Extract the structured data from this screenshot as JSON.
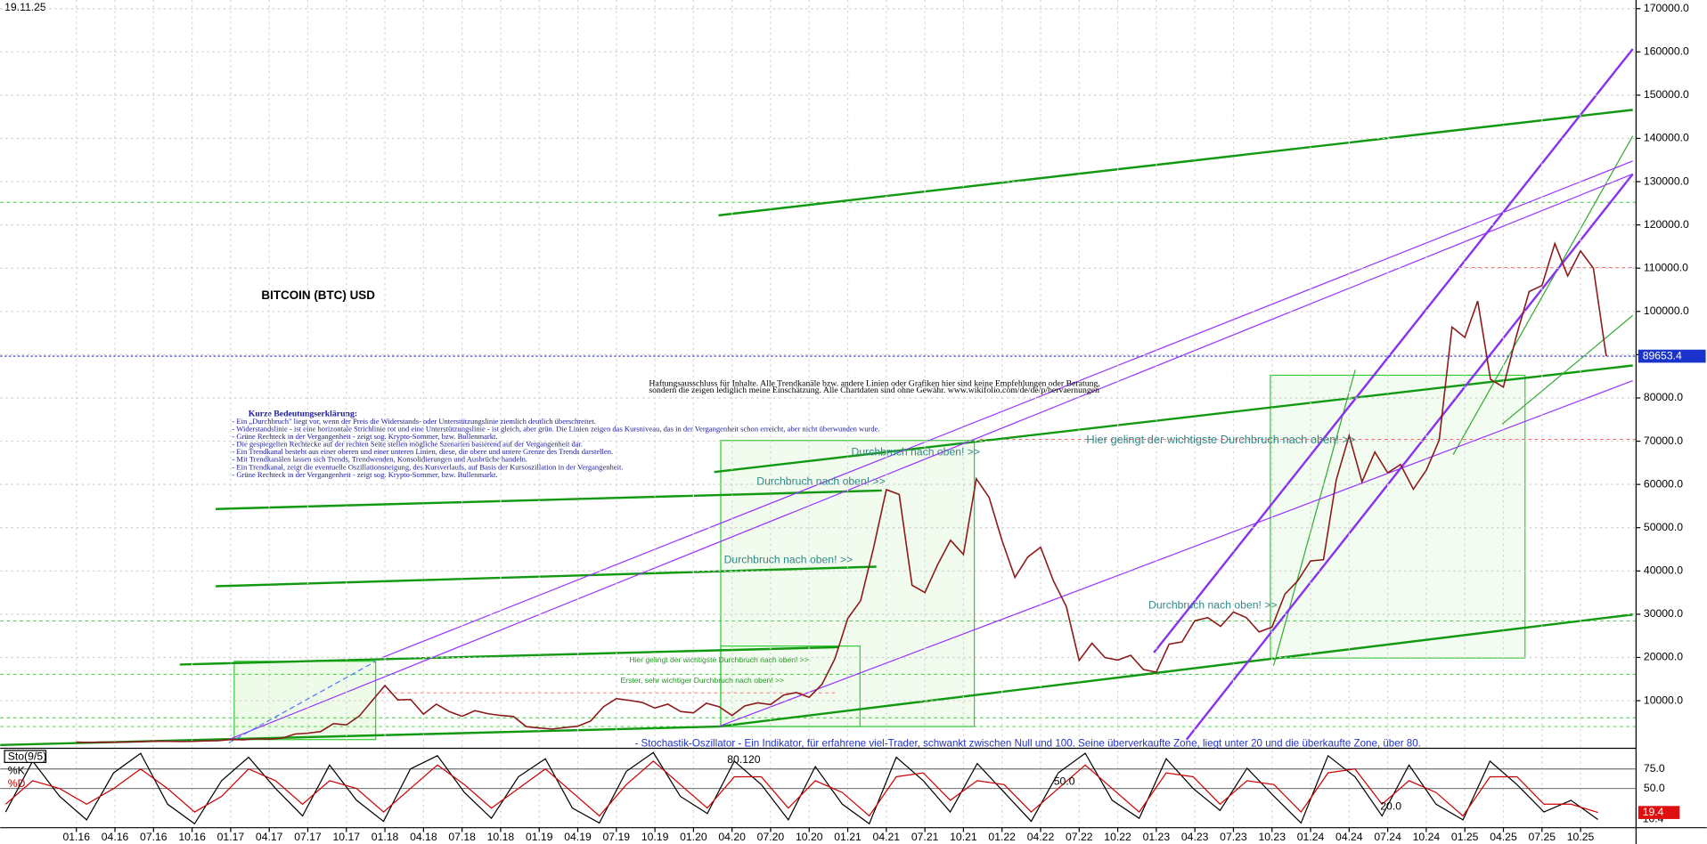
{
  "chart_data": [
    {
      "type": "line",
      "title": "BITCOIN (BTC) USD",
      "date": "19.11.25",
      "categories": [
        "01.16",
        null,
        null,
        "04.16",
        null,
        null,
        "07.16",
        null,
        null,
        "10.16",
        null,
        null,
        "01.17",
        null,
        null,
        "04.17",
        null,
        null,
        "07.17",
        null,
        null,
        "10.17",
        null,
        null,
        "01.18",
        null,
        null,
        "04.18",
        null,
        null,
        "07.18",
        null,
        null,
        "10.18",
        null,
        null,
        "01.19",
        null,
        null,
        "04.19",
        null,
        null,
        "07.19",
        null,
        null,
        "10.19",
        null,
        null,
        "01.20",
        null,
        null,
        "04.20",
        null,
        null,
        "07.20",
        null,
        null,
        "10.20",
        null,
        null,
        "01.21",
        null,
        null,
        "04.21",
        null,
        null,
        "07.21",
        null,
        null,
        "10.21",
        null,
        null,
        "01.22",
        null,
        null,
        "04.22",
        null,
        null,
        "07.22",
        null,
        null,
        "10.22",
        null,
        null,
        "01.23",
        null,
        null,
        "04.23",
        null,
        null,
        "07.23",
        null,
        null,
        "10.23",
        null,
        null,
        "01.24",
        null,
        null,
        "04.24",
        null,
        null,
        "07.24",
        null,
        null,
        "10.24",
        null,
        null,
        "01.25",
        null,
        null,
        "04.25",
        null,
        null,
        "07.25",
        null,
        null,
        "10.25",
        null,
        null
      ],
      "series": [
        {
          "color": "#8b1a1a",
          "values": [
            430,
            370,
            435,
            415,
            450,
            530,
            670,
            625,
            575,
            610,
            700,
            750,
            1000,
            970,
            1190,
            1080,
            1350,
            2300,
            2500,
            2860,
            4700,
            4400,
            6450,
            10000,
            13500,
            10200,
            10300,
            6900,
            9200,
            7500,
            6400,
            7700,
            7000,
            6600,
            6350,
            4000,
            3700,
            3450,
            3800,
            4100,
            5300,
            8600,
            10500,
            10100,
            9600,
            8300,
            9200,
            7500,
            7200,
            9400,
            8600,
            6600,
            8800,
            9500,
            9100,
            11300,
            11900,
            10800,
            13800,
            19700,
            29000,
            33100,
            45200,
            58800,
            57700,
            36700,
            35000,
            41500,
            47100,
            43800,
            61300,
            57000,
            47000,
            38500,
            43200,
            45500,
            37700,
            31800,
            19300,
            23300,
            20000,
            19400,
            20500,
            17200,
            16600,
            23100,
            23600,
            28500,
            29200,
            27200,
            30500,
            29200,
            25900,
            27000,
            34600,
            37700,
            42300,
            42600,
            61100,
            71300,
            60600,
            67500,
            62700,
            64600,
            58900,
            63300,
            70200,
            96400,
            94000,
            102400,
            84300,
            82500,
            94200,
            104600,
            106000,
            115700,
            108200,
            114000,
            110000,
            89653.4
          ]
        }
      ],
      "ylim": [
        -1000,
        172000
      ],
      "yticks": [
        {
          "value": 10000,
          "label": "10000.0"
        },
        {
          "value": 20000,
          "label": "20000.0"
        },
        {
          "value": 30000,
          "label": "30000.0"
        },
        {
          "value": 40000,
          "label": "40000.0"
        },
        {
          "value": 50000,
          "label": "50000.0"
        },
        {
          "value": 60000,
          "label": "60000.0"
        },
        {
          "value": 70000,
          "label": "70000.0"
        },
        {
          "value": 80000,
          "label": "80000.0"
        },
        {
          "value": 90000,
          "label": "90000.0"
        },
        {
          "value": 100000,
          "label": "100000.0"
        },
        {
          "value": 110000,
          "label": "110000.0"
        },
        {
          "value": 120000,
          "label": "120000.0"
        },
        {
          "value": 130000,
          "label": "130000.0"
        },
        {
          "value": 140000,
          "label": "140000.0"
        },
        {
          "value": 150000,
          "label": "150000.0"
        },
        {
          "value": 160000,
          "label": "160000.0"
        },
        {
          "value": 170000,
          "label": "170000.0"
        }
      ],
      "grid": true,
      "annotations": [
        "Durchbruch nach oben! >>",
        "Durchbruch nach oben! >>",
        "Durchbruch nach oben! >>",
        "Durchbruch nach oben! >>",
        "Hier gelingt der wichtigste Durchbruch nach oben! >>",
        "Hier gelingt der wichtigste Durchbruch nach oben! >>",
        "Erster, sehr wichtiger Durchbruch nach oben! >>"
      ],
      "notes_title": "Kurze Bedeutungserklärung:",
      "notes": [
        "- Ein „Durchbruch\" liegt vor, wenn der Preis die Widerstands- oder Unterstützungslinie ziemlich deutlich überschreitet.",
        "- Widerstandslinie - ist eine horizontale Strichlinie rot und eine Unterstützungslinie - ist gleich, aber grün. Die Linien zeigen das Kursniveau, das in der Vergangenheit schon erreicht, aber nicht überwunden wurde.",
        "- Grüne Rechteck in der Vergangenheit - zeigt sog. Krypto-Sommer, bzw. Bullenmarkt.",
        "- Die gespiegelten Rechtecke auf der rechten Seite stellen mögliche Szenarien basierend auf der Vergangenheit dar.",
        "- Ein Trendkanal besteht aus einer oberen und einer unteren Linien, diese, die obere und untere Grenze des Trends darstellen.",
        "- Mit Trendkanälen lassen sich Trends, Trendwenden, Konsolidierungen und Ausbrüche handeln.",
        "- Ein Trendkanal, zeigt die eventuelle Oszillationsneigung, des Kursverlaufs, auf Basis der Kursoszillation in der Vergangenheit.",
        "- Grüne Rechteck in der Vergangenheit - zeigt sog. Krypto-Sommer, bzw. Bullenmarkt."
      ],
      "disclaimer": [
        "Haftungsausschluss für Inhalte. Alle Trendkanäle bzw. andere Linien oder Grafiken hier sind keine Empfehlungen oder Beratung,",
        "sondern die zeigen lediglich meine Einschätzung. Alle Chartdaten sind ohne Gewähr. www.wikifolio.com/de/de/p/bervaernungen"
      ]
    },
    {
      "type": "line",
      "title": "Sto(9/5)",
      "series": [
        {
          "name": "%K",
          "color": "#000000",
          "values": [
            20,
            85,
            40,
            10,
            70,
            95,
            30,
            5,
            60,
            90,
            50,
            15,
            80,
            35,
            8,
            75,
            92,
            45,
            12,
            65,
            88,
            25,
            6,
            72,
            96,
            40,
            18,
            85,
            55,
            10,
            78,
            30,
            5,
            90,
            60,
            20,
            82,
            45,
            8,
            70,
            95,
            35,
            12,
            88,
            50,
            22,
            76,
            40,
            6,
            92,
            65,
            15,
            80,
            30,
            10,
            85,
            55,
            20,
            35,
            10.4
          ]
        },
        {
          "name": "%D",
          "color": "#cc0000",
          "values": [
            30,
            60,
            50,
            30,
            50,
            75,
            50,
            20,
            40,
            75,
            60,
            30,
            60,
            50,
            20,
            50,
            80,
            55,
            25,
            50,
            75,
            45,
            15,
            55,
            85,
            55,
            25,
            65,
            65,
            25,
            60,
            45,
            15,
            65,
            70,
            35,
            60,
            55,
            20,
            50,
            80,
            50,
            20,
            70,
            65,
            30,
            60,
            55,
            20,
            70,
            75,
            30,
            60,
            45,
            15,
            65,
            65,
            30,
            30,
            19.4
          ]
        }
      ],
      "ylim": [
        0,
        100
      ],
      "yticks": [
        {
          "value": 50,
          "label": "50.0"
        },
        {
          "value": 75,
          "label": "75.0"
        }
      ],
      "level_labels": [
        "80.120",
        "50.0",
        "20.0"
      ],
      "description": "- Stochastik-Oszillator - Ein Indikator, für erfahrene viel-Trader, schwankt zwischen Null und 100. Seine überverkaufte Zone, liegt unter 20 und die überkaufte Zone, über 80."
    }
  ]
}
